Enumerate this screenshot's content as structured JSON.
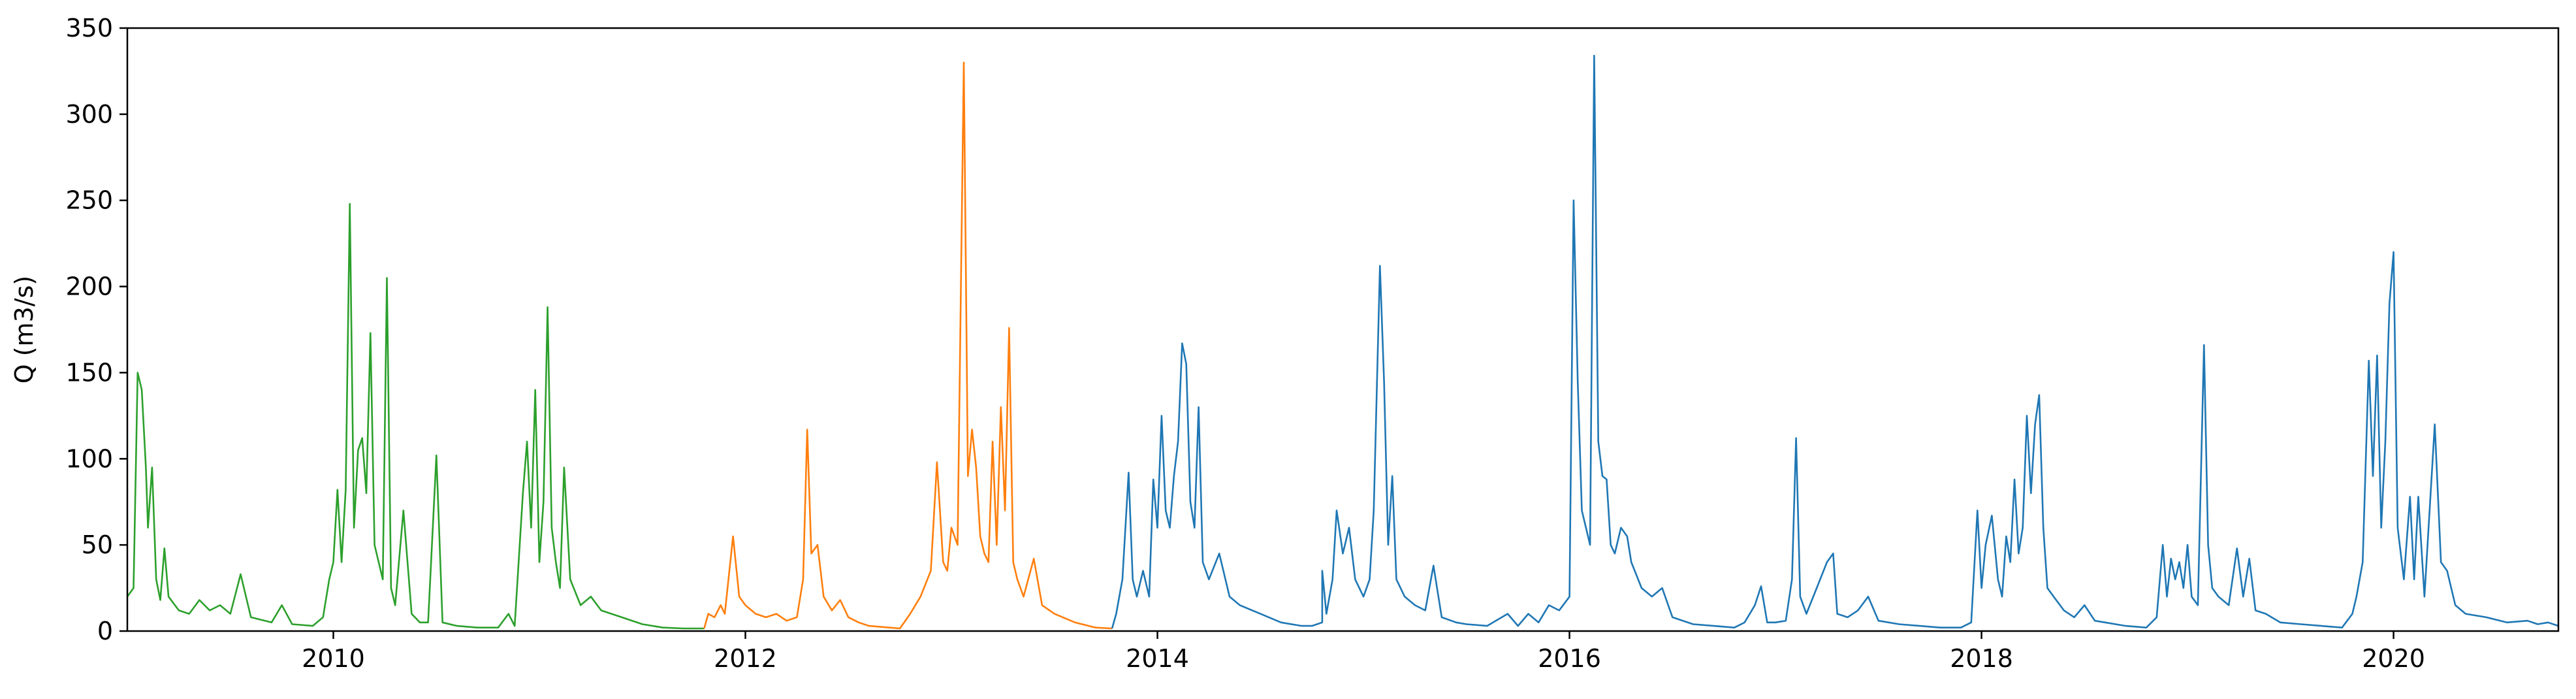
{
  "chart_data": {
    "type": "line",
    "title": "",
    "xlabel": "",
    "ylabel": "Q (m3/s)",
    "x_unit": "year",
    "xlim": [
      2009.0,
      2020.8
    ],
    "ylim": [
      0,
      350
    ],
    "x_ticks": [
      2010,
      2012,
      2014,
      2016,
      2018,
      2020
    ],
    "y_ticks": [
      0,
      50,
      100,
      150,
      200,
      250,
      300,
      350
    ],
    "grid": false,
    "legend": "none",
    "series": [
      {
        "color": "#2ca02c",
        "points": [
          [
            2009.0,
            20
          ],
          [
            2009.03,
            25
          ],
          [
            2009.05,
            150
          ],
          [
            2009.07,
            140
          ],
          [
            2009.09,
            95
          ],
          [
            2009.1,
            60
          ],
          [
            2009.12,
            95
          ],
          [
            2009.14,
            30
          ],
          [
            2009.16,
            18
          ],
          [
            2009.18,
            48
          ],
          [
            2009.2,
            20
          ],
          [
            2009.25,
            12
          ],
          [
            2009.3,
            10
          ],
          [
            2009.35,
            18
          ],
          [
            2009.4,
            12
          ],
          [
            2009.45,
            15
          ],
          [
            2009.5,
            10
          ],
          [
            2009.55,
            33
          ],
          [
            2009.6,
            8
          ],
          [
            2009.7,
            5
          ],
          [
            2009.75,
            15
          ],
          [
            2009.8,
            4
          ],
          [
            2009.9,
            3
          ],
          [
            2009.95,
            8
          ],
          [
            2009.98,
            30
          ],
          [
            2010.0,
            40
          ],
          [
            2010.02,
            82
          ],
          [
            2010.04,
            40
          ],
          [
            2010.06,
            82
          ],
          [
            2010.08,
            248
          ],
          [
            2010.1,
            60
          ],
          [
            2010.12,
            105
          ],
          [
            2010.14,
            112
          ],
          [
            2010.16,
            80
          ],
          [
            2010.18,
            173
          ],
          [
            2010.2,
            50
          ],
          [
            2010.22,
            40
          ],
          [
            2010.24,
            30
          ],
          [
            2010.26,
            205
          ],
          [
            2010.28,
            25
          ],
          [
            2010.3,
            15
          ],
          [
            2010.34,
            70
          ],
          [
            2010.38,
            10
          ],
          [
            2010.42,
            5
          ],
          [
            2010.46,
            5
          ],
          [
            2010.5,
            102
          ],
          [
            2010.53,
            5
          ],
          [
            2010.6,
            3
          ],
          [
            2010.7,
            2
          ],
          [
            2010.8,
            2
          ],
          [
            2010.85,
            10
          ],
          [
            2010.88,
            3
          ],
          [
            2010.92,
            80
          ],
          [
            2010.94,
            110
          ],
          [
            2010.96,
            60
          ],
          [
            2010.98,
            140
          ],
          [
            2011.0,
            40
          ],
          [
            2011.02,
            75
          ],
          [
            2011.04,
            188
          ],
          [
            2011.06,
            60
          ],
          [
            2011.08,
            40
          ],
          [
            2011.1,
            25
          ],
          [
            2011.12,
            95
          ],
          [
            2011.15,
            30
          ],
          [
            2011.2,
            15
          ],
          [
            2011.25,
            20
          ],
          [
            2011.3,
            12
          ],
          [
            2011.35,
            10
          ],
          [
            2011.4,
            8
          ],
          [
            2011.5,
            4
          ],
          [
            2011.6,
            2
          ],
          [
            2011.7,
            1.5
          ],
          [
            2011.8,
            1.5
          ]
        ]
      },
      {
        "color": "#ff7f0e",
        "points": [
          [
            2011.8,
            1.5
          ],
          [
            2011.82,
            10
          ],
          [
            2011.85,
            8
          ],
          [
            2011.88,
            15
          ],
          [
            2011.9,
            10
          ],
          [
            2011.94,
            55
          ],
          [
            2011.97,
            20
          ],
          [
            2012.0,
            15
          ],
          [
            2012.05,
            10
          ],
          [
            2012.1,
            8
          ],
          [
            2012.15,
            10
          ],
          [
            2012.2,
            6
          ],
          [
            2012.25,
            8
          ],
          [
            2012.28,
            30
          ],
          [
            2012.3,
            117
          ],
          [
            2012.32,
            45
          ],
          [
            2012.35,
            50
          ],
          [
            2012.38,
            20
          ],
          [
            2012.42,
            12
          ],
          [
            2012.46,
            18
          ],
          [
            2012.5,
            8
          ],
          [
            2012.55,
            5
          ],
          [
            2012.6,
            3
          ],
          [
            2012.7,
            2
          ],
          [
            2012.75,
            1.5
          ],
          [
            2012.8,
            10
          ],
          [
            2012.85,
            20
          ],
          [
            2012.9,
            35
          ],
          [
            2012.93,
            98
          ],
          [
            2012.96,
            40
          ],
          [
            2012.98,
            35
          ],
          [
            2013.0,
            60
          ],
          [
            2013.03,
            50
          ],
          [
            2013.06,
            330
          ],
          [
            2013.08,
            90
          ],
          [
            2013.1,
            117
          ],
          [
            2013.12,
            95
          ],
          [
            2013.14,
            55
          ],
          [
            2013.16,
            45
          ],
          [
            2013.18,
            40
          ],
          [
            2013.2,
            110
          ],
          [
            2013.22,
            50
          ],
          [
            2013.24,
            130
          ],
          [
            2013.26,
            70
          ],
          [
            2013.28,
            176
          ],
          [
            2013.3,
            40
          ],
          [
            2013.32,
            30
          ],
          [
            2013.35,
            20
          ],
          [
            2013.4,
            42
          ],
          [
            2013.44,
            15
          ],
          [
            2013.5,
            10
          ],
          [
            2013.6,
            5
          ],
          [
            2013.7,
            2
          ],
          [
            2013.78,
            1.5
          ]
        ]
      },
      {
        "color": "#1f77b4",
        "points": [
          [
            2013.78,
            1.5
          ],
          [
            2013.8,
            10
          ],
          [
            2013.83,
            30
          ],
          [
            2013.86,
            92
          ],
          [
            2013.88,
            30
          ],
          [
            2013.9,
            20
          ],
          [
            2013.93,
            35
          ],
          [
            2013.96,
            20
          ],
          [
            2013.98,
            88
          ],
          [
            2014.0,
            60
          ],
          [
            2014.02,
            125
          ],
          [
            2014.04,
            70
          ],
          [
            2014.06,
            60
          ],
          [
            2014.08,
            90
          ],
          [
            2014.1,
            110
          ],
          [
            2014.12,
            167
          ],
          [
            2014.14,
            155
          ],
          [
            2014.16,
            75
          ],
          [
            2014.18,
            60
          ],
          [
            2014.2,
            130
          ],
          [
            2014.22,
            40
          ],
          [
            2014.25,
            30
          ],
          [
            2014.3,
            45
          ],
          [
            2014.35,
            20
          ],
          [
            2014.4,
            15
          ],
          [
            2014.5,
            10
          ],
          [
            2014.6,
            5
          ],
          [
            2014.7,
            3
          ],
          [
            2014.75,
            3
          ],
          [
            2014.8,
            5
          ],
          [
            2014.8,
            35
          ],
          [
            2014.82,
            10
          ],
          [
            2014.85,
            30
          ],
          [
            2014.87,
            70
          ],
          [
            2014.9,
            45
          ],
          [
            2014.93,
            60
          ],
          [
            2014.96,
            30
          ],
          [
            2014.98,
            25
          ],
          [
            2015.0,
            20
          ],
          [
            2015.03,
            30
          ],
          [
            2015.05,
            70
          ],
          [
            2015.08,
            212
          ],
          [
            2015.1,
            145
          ],
          [
            2015.12,
            50
          ],
          [
            2015.14,
            90
          ],
          [
            2015.16,
            30
          ],
          [
            2015.2,
            20
          ],
          [
            2015.25,
            15
          ],
          [
            2015.3,
            12
          ],
          [
            2015.34,
            38
          ],
          [
            2015.38,
            8
          ],
          [
            2015.45,
            5
          ],
          [
            2015.5,
            4
          ],
          [
            2015.6,
            3
          ],
          [
            2015.7,
            10
          ],
          [
            2015.75,
            3
          ],
          [
            2015.8,
            10
          ],
          [
            2015.85,
            5
          ],
          [
            2015.9,
            15
          ],
          [
            2015.95,
            12
          ],
          [
            2016.0,
            20
          ],
          [
            2016.02,
            250
          ],
          [
            2016.04,
            145
          ],
          [
            2016.06,
            70
          ],
          [
            2016.08,
            60
          ],
          [
            2016.1,
            50
          ],
          [
            2016.12,
            334
          ],
          [
            2016.14,
            110
          ],
          [
            2016.16,
            90
          ],
          [
            2016.18,
            88
          ],
          [
            2016.2,
            50
          ],
          [
            2016.22,
            45
          ],
          [
            2016.25,
            60
          ],
          [
            2016.28,
            55
          ],
          [
            2016.3,
            40
          ],
          [
            2016.35,
            25
          ],
          [
            2016.4,
            20
          ],
          [
            2016.45,
            25
          ],
          [
            2016.5,
            8
          ],
          [
            2016.6,
            4
          ],
          [
            2016.7,
            3
          ],
          [
            2016.8,
            2
          ],
          [
            2016.85,
            5
          ],
          [
            2016.9,
            15
          ],
          [
            2016.93,
            26
          ],
          [
            2016.96,
            5
          ],
          [
            2017.0,
            5
          ],
          [
            2017.05,
            6
          ],
          [
            2017.08,
            30
          ],
          [
            2017.1,
            112
          ],
          [
            2017.12,
            20
          ],
          [
            2017.15,
            10
          ],
          [
            2017.2,
            25
          ],
          [
            2017.25,
            40
          ],
          [
            2017.28,
            45
          ],
          [
            2017.3,
            10
          ],
          [
            2017.35,
            8
          ],
          [
            2017.4,
            12
          ],
          [
            2017.45,
            20
          ],
          [
            2017.5,
            6
          ],
          [
            2017.6,
            4
          ],
          [
            2017.7,
            3
          ],
          [
            2017.8,
            2
          ],
          [
            2017.9,
            2
          ],
          [
            2017.95,
            5
          ],
          [
            2017.98,
            70
          ],
          [
            2018.0,
            25
          ],
          [
            2018.02,
            50
          ],
          [
            2018.05,
            67
          ],
          [
            2018.08,
            30
          ],
          [
            2018.1,
            20
          ],
          [
            2018.12,
            55
          ],
          [
            2018.14,
            40
          ],
          [
            2018.16,
            88
          ],
          [
            2018.18,
            45
          ],
          [
            2018.2,
            60
          ],
          [
            2018.22,
            125
          ],
          [
            2018.24,
            80
          ],
          [
            2018.26,
            120
          ],
          [
            2018.28,
            137
          ],
          [
            2018.3,
            60
          ],
          [
            2018.32,
            25
          ],
          [
            2018.35,
            20
          ],
          [
            2018.4,
            12
          ],
          [
            2018.45,
            8
          ],
          [
            2018.5,
            15
          ],
          [
            2018.55,
            6
          ],
          [
            2018.6,
            5
          ],
          [
            2018.7,
            3
          ],
          [
            2018.8,
            2
          ],
          [
            2018.85,
            8
          ],
          [
            2018.88,
            50
          ],
          [
            2018.9,
            20
          ],
          [
            2018.92,
            42
          ],
          [
            2018.94,
            30
          ],
          [
            2018.96,
            40
          ],
          [
            2018.98,
            25
          ],
          [
            2019.0,
            50
          ],
          [
            2019.02,
            20
          ],
          [
            2019.05,
            15
          ],
          [
            2019.08,
            166
          ],
          [
            2019.1,
            50
          ],
          [
            2019.12,
            25
          ],
          [
            2019.15,
            20
          ],
          [
            2019.2,
            15
          ],
          [
            2019.24,
            48
          ],
          [
            2019.27,
            20
          ],
          [
            2019.3,
            42
          ],
          [
            2019.33,
            12
          ],
          [
            2019.38,
            10
          ],
          [
            2019.45,
            5
          ],
          [
            2019.55,
            4
          ],
          [
            2019.65,
            3
          ],
          [
            2019.75,
            2
          ],
          [
            2019.8,
            10
          ],
          [
            2019.82,
            20
          ],
          [
            2019.85,
            40
          ],
          [
            2019.88,
            157
          ],
          [
            2019.9,
            90
          ],
          [
            2019.92,
            160
          ],
          [
            2019.94,
            60
          ],
          [
            2019.96,
            110
          ],
          [
            2019.98,
            190
          ],
          [
            2020.0,
            220
          ],
          [
            2020.02,
            60
          ],
          [
            2020.05,
            30
          ],
          [
            2020.08,
            78
          ],
          [
            2020.1,
            30
          ],
          [
            2020.12,
            78
          ],
          [
            2020.15,
            20
          ],
          [
            2020.2,
            120
          ],
          [
            2020.23,
            40
          ],
          [
            2020.26,
            35
          ],
          [
            2020.3,
            15
          ],
          [
            2020.35,
            10
          ],
          [
            2020.45,
            8
          ],
          [
            2020.55,
            5
          ],
          [
            2020.65,
            6
          ],
          [
            2020.7,
            4
          ],
          [
            2020.75,
            5
          ],
          [
            2020.8,
            3
          ]
        ]
      }
    ]
  }
}
